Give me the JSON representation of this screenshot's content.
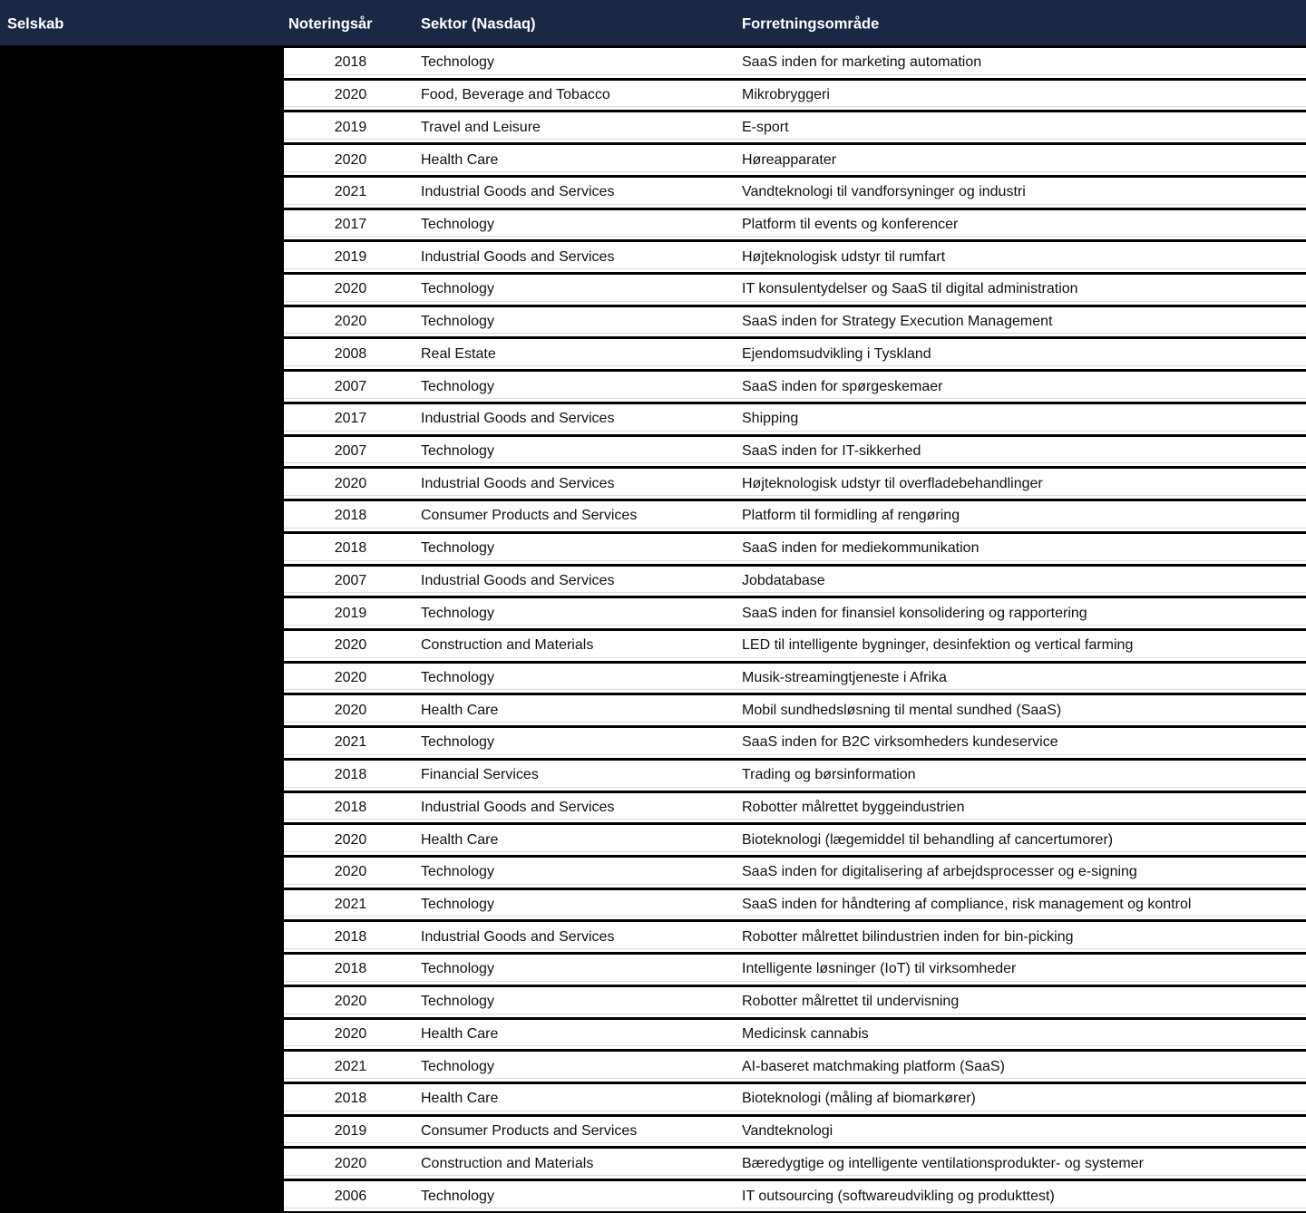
{
  "colors": {
    "header_bg": "#1a2845",
    "header_text": "#ffffff",
    "redacted_block": "#000000",
    "row_bg": "#ffffff",
    "row_border": "#000000",
    "body_text": "#111111"
  },
  "table": {
    "columns": [
      "Selskab",
      "Noteringsår",
      "Sektor (Nasdaq)",
      "Forretningsområde"
    ],
    "company_column_redacted": true,
    "rows": [
      {
        "year": "2018",
        "sector": "Technology",
        "area": "SaaS inden for marketing automation"
      },
      {
        "year": "2020",
        "sector": "Food, Beverage and Tobacco",
        "area": "Mikrobryggeri"
      },
      {
        "year": "2019",
        "sector": "Travel and Leisure",
        "area": "E-sport"
      },
      {
        "year": "2020",
        "sector": "Health Care",
        "area": "Høreapparater"
      },
      {
        "year": "2021",
        "sector": "Industrial Goods and Services",
        "area": "Vandteknologi til vandforsyninger og industri"
      },
      {
        "year": "2017",
        "sector": "Technology",
        "area": "Platform til events og konferencer"
      },
      {
        "year": "2019",
        "sector": "Industrial Goods and Services",
        "area": "Højteknologisk udstyr til rumfart"
      },
      {
        "year": "2020",
        "sector": "Technology",
        "area": "IT konsulentydelser og SaaS til digital administration"
      },
      {
        "year": "2020",
        "sector": "Technology",
        "area": "SaaS inden for Strategy Execution Management"
      },
      {
        "year": "2008",
        "sector": "Real Estate",
        "area": "Ejendomsudvikling i Tyskland"
      },
      {
        "year": "2007",
        "sector": "Technology",
        "area": "SaaS inden for spørgeskemaer"
      },
      {
        "year": "2017",
        "sector": "Industrial Goods and Services",
        "area": "Shipping"
      },
      {
        "year": "2007",
        "sector": "Technology",
        "area": "SaaS inden for IT-sikkerhed"
      },
      {
        "year": "2020",
        "sector": "Industrial Goods and Services",
        "area": "Højteknologisk udstyr til overfladebehandlinger"
      },
      {
        "year": "2018",
        "sector": "Consumer Products and Services",
        "area": "Platform til formidling af rengøring"
      },
      {
        "year": "2018",
        "sector": "Technology",
        "area": "SaaS inden for mediekommunikation"
      },
      {
        "year": "2007",
        "sector": "Industrial Goods and Services",
        "area": "Jobdatabase"
      },
      {
        "year": "2019",
        "sector": "Technology",
        "area": "SaaS inden for finansiel konsolidering og rapportering"
      },
      {
        "year": "2020",
        "sector": "Construction and Materials",
        "area": "LED til intelligente bygninger, desinfektion og vertical farming"
      },
      {
        "year": "2020",
        "sector": "Technology",
        "area": "Musik-streamingtjeneste i Afrika"
      },
      {
        "year": "2020",
        "sector": "Health Care",
        "area": "Mobil sundhedsløsning til mental sundhed (SaaS)"
      },
      {
        "year": "2021",
        "sector": "Technology",
        "area": "SaaS inden for B2C virksomheders kundeservice"
      },
      {
        "year": "2018",
        "sector": "Financial Services",
        "area": "Trading og børsinformation"
      },
      {
        "year": "2018",
        "sector": "Industrial Goods and Services",
        "area": "Robotter målrettet byggeindustrien"
      },
      {
        "year": "2020",
        "sector": "Health Care",
        "area": "Bioteknologi (lægemiddel til behandling af cancertumorer)"
      },
      {
        "year": "2020",
        "sector": "Technology",
        "area": "SaaS inden for digitalisering af arbejdsprocesser og e-signing"
      },
      {
        "year": "2021",
        "sector": "Technology",
        "area": "SaaS inden for håndtering af compliance, risk management og kontrol"
      },
      {
        "year": "2018",
        "sector": "Industrial Goods and Services",
        "area": "Robotter målrettet bilindustrien inden for bin-picking"
      },
      {
        "year": "2018",
        "sector": "Technology",
        "area": "Intelligente løsninger (IoT) til virksomheder"
      },
      {
        "year": "2020",
        "sector": "Technology",
        "area": "Robotter målrettet til undervisning"
      },
      {
        "year": "2020",
        "sector": "Health Care",
        "area": "Medicinsk cannabis"
      },
      {
        "year": "2021",
        "sector": "Technology",
        "area": "AI-baseret matchmaking platform (SaaS)"
      },
      {
        "year": "2018",
        "sector": "Health Care",
        "area": "Bioteknologi (måling af biomarkører)"
      },
      {
        "year": "2019",
        "sector": "Consumer Products and Services",
        "area": "Vandteknologi"
      },
      {
        "year": "2020",
        "sector": "Construction and Materials",
        "area": "Bæredygtige og intelligente ventilationsprodukter- og systemer"
      },
      {
        "year": "2006",
        "sector": "Technology",
        "area": "IT outsourcing (softwareudvikling og produkttest)"
      }
    ]
  }
}
